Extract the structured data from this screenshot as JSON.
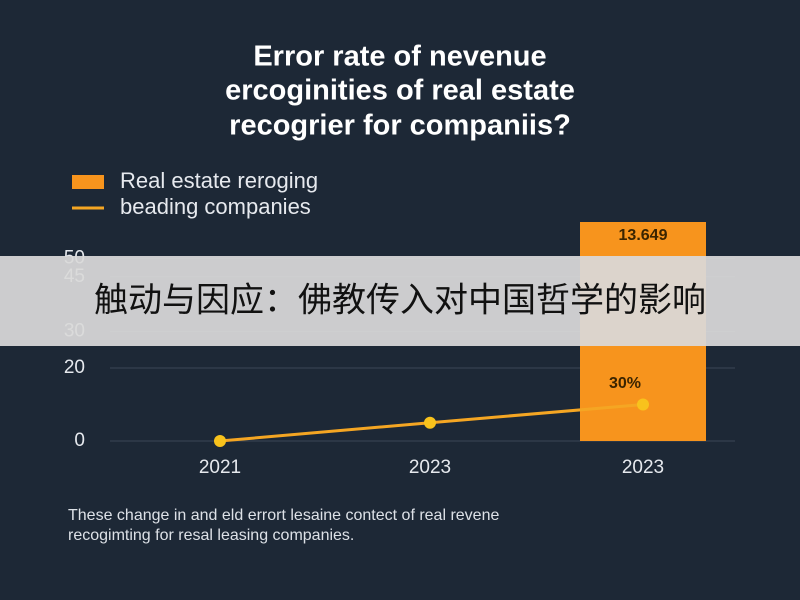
{
  "chart_data": {
    "type": "bar",
    "title": [
      "Error rate of nevenue",
      "ercoginities of real estate",
      "recogrier for companiis?"
    ],
    "categories": [
      "2021",
      "2023",
      "2023"
    ],
    "series": [
      {
        "name": "Real estate reroging",
        "type": "bar",
        "color": "#f7941d",
        "values": [
          null,
          null,
          60
        ]
      },
      {
        "name": "beading companies",
        "type": "line",
        "color": "#f5a623",
        "values": [
          0,
          5,
          10
        ]
      }
    ],
    "annotations": [
      "13.649",
      "30%"
    ],
    "ylim": [
      0,
      60
    ],
    "yticks": [
      0,
      20,
      30,
      45,
      50
    ],
    "grid": true,
    "footnote": [
      "These change in and eld errort lesaine contect of real revene",
      "recogimting for resal leasing companies."
    ]
  },
  "overlay_banner": {
    "text": "触动与因应：佛教传入对中国哲学的影响"
  }
}
